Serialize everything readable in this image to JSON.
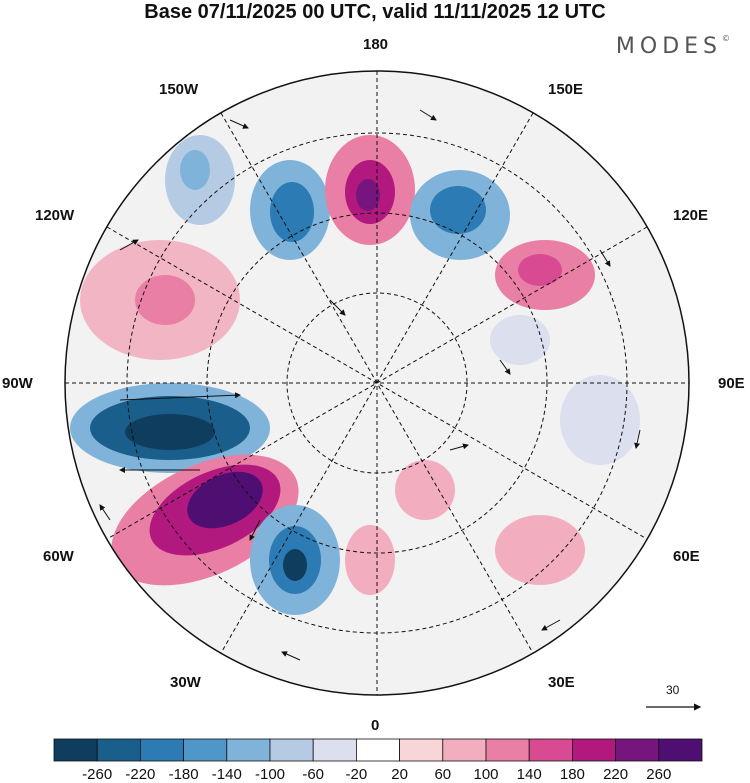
{
  "title": "Base 07/11/2025 00 UTC, valid 11/11/2025 12 UTC",
  "brand": "MODES",
  "brand_mark": "©",
  "meridian_labels": {
    "top": "180",
    "bottom": "0",
    "left": "90W",
    "right": "90E",
    "upper_left_1": "150W",
    "upper_left_2": "120W",
    "upper_right_1": "150E",
    "upper_right_2": "120E",
    "lower_left_1": "60W",
    "lower_left_2": "30W",
    "lower_right_1": "60E",
    "lower_right_2": "30E"
  },
  "vector_scale_label": "30",
  "colorbar": {
    "ticks": [
      "-260",
      "-220",
      "-180",
      "-140",
      "-100",
      "-60",
      "-20",
      "20",
      "60",
      "100",
      "140",
      "180",
      "220",
      "260"
    ],
    "colors": [
      "#0f3d5e",
      "#1a5f8c",
      "#2c7bb4",
      "#4f97c9",
      "#7fb3d9",
      "#b5cbe4",
      "#dcdfee",
      "#ffffff",
      "#f8d6d8",
      "#f2aebf",
      "#ea7fa5",
      "#d84b93",
      "#b2197f",
      "#77157f",
      "#4f0f72"
    ]
  }
}
